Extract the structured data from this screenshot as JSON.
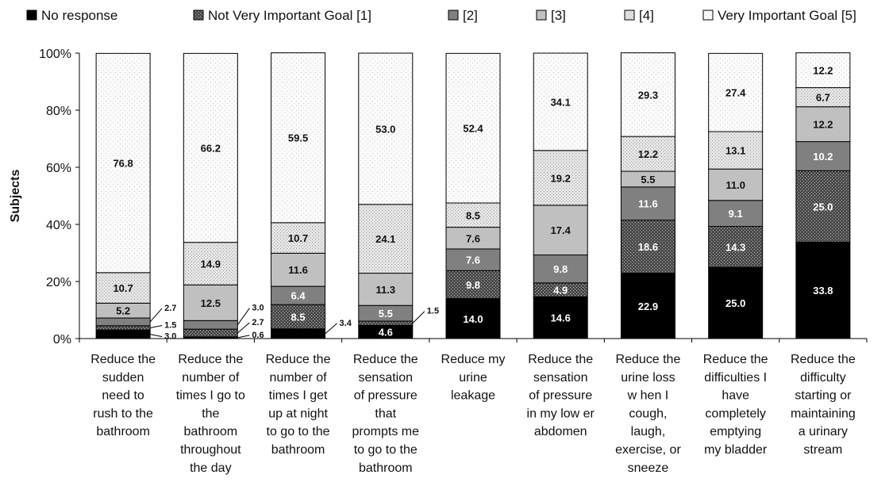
{
  "chart_data": {
    "type": "bar",
    "stacked": true,
    "xlabel": "",
    "ylabel": "Subjects",
    "ylim": [
      0,
      100
    ],
    "yticks": [
      "0%",
      "20%",
      "40%",
      "60%",
      "80%",
      "100%"
    ],
    "legend_position": "top",
    "grid": false,
    "categories": [
      [
        "Reduce the",
        "sudden",
        "need to",
        "rush to the",
        "bathroom"
      ],
      [
        "Reduce the",
        "number of",
        "times I go to",
        "the",
        "bathroom",
        "throughout",
        "the day"
      ],
      [
        "Reduce the",
        "number of",
        "times I get",
        "up at night",
        "to go to the",
        "bathroom"
      ],
      [
        "Reduce the",
        "sensation",
        "of pressure",
        "that",
        "prompts me",
        "to go to the",
        "bathroom"
      ],
      [
        "Reduce my",
        "urine",
        "leakage"
      ],
      [
        "Reduce the",
        "sensation",
        "of pressure",
        "in my low er",
        "abdomen"
      ],
      [
        "Reduce the",
        "urine loss",
        "w hen I",
        "cough,",
        "laugh,",
        "exercise, or",
        "sneeze"
      ],
      [
        "Reduce the",
        "difficulties I",
        "have",
        "completely",
        "emptying",
        "my bladder"
      ],
      [
        "Reduce the",
        "difficulty",
        "starting or",
        "maintaining",
        "a urinary",
        "stream"
      ]
    ],
    "series": [
      {
        "name": "No response",
        "color": "#000000",
        "pattern": "solid",
        "values": [
          3.0,
          0.6,
          3.4,
          4.6,
          14.0,
          14.6,
          22.9,
          25.0,
          33.8
        ],
        "labels": [
          "3.0",
          "0.6",
          "3.4",
          "4.6",
          "14.0",
          "14.6",
          "22.9",
          "25.0",
          "33.8"
        ]
      },
      {
        "name": "Not Very Important Goal [1]",
        "color": "#3a3a3a",
        "pattern": "crosshatch",
        "values": [
          1.5,
          2.7,
          8.5,
          1.5,
          9.8,
          4.9,
          18.6,
          14.3,
          25.0
        ],
        "labels": [
          "1.5",
          "2.7",
          "8.5",
          "1.5",
          "9.8",
          "4.9",
          "18.6",
          "14.3",
          "25.0"
        ]
      },
      {
        "name": "[2]",
        "color": "#808080",
        "pattern": "solid",
        "values": [
          2.7,
          3.0,
          6.4,
          5.5,
          7.6,
          9.8,
          11.6,
          9.1,
          10.2
        ],
        "labels": [
          "2.7",
          "3.0",
          "6.4",
          "5.5",
          "7.6",
          "9.8",
          "11.6",
          "9.1",
          "10.2"
        ]
      },
      {
        "name": "[3]",
        "color": "#c0c0c0",
        "pattern": "solid",
        "values": [
          5.2,
          12.5,
          11.6,
          11.3,
          7.6,
          17.4,
          5.5,
          11.0,
          12.2
        ],
        "labels": [
          "5.2",
          "12.5",
          "11.6",
          "11.3",
          "7.6",
          "17.4",
          "5.5",
          "11.0",
          "12.2"
        ]
      },
      {
        "name": "[4]",
        "color": "#e2e2e2",
        "pattern": "dots",
        "values": [
          10.7,
          14.9,
          10.7,
          24.1,
          8.5,
          19.2,
          12.2,
          13.1,
          6.7
        ],
        "labels": [
          "10.7",
          "14.9",
          "10.7",
          "24.1",
          "8.5",
          "19.2",
          "12.2",
          "13.1",
          "6.7"
        ]
      },
      {
        "name": "Very Important Goal [5]",
        "color": "#f7f7f7",
        "pattern": "finedots",
        "values": [
          76.8,
          66.2,
          59.5,
          53.0,
          52.4,
          34.1,
          29.3,
          27.4,
          12.2
        ],
        "labels": [
          "76.8",
          "66.2",
          "59.5",
          "53.0",
          "52.4",
          "34.1",
          "29.3",
          "27.4",
          "12.2"
        ]
      }
    ]
  }
}
